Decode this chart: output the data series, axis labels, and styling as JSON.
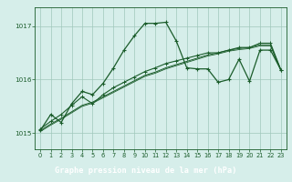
{
  "xlabel": "Graphe pression niveau de la mer (hPa)",
  "xlim_min": -0.5,
  "xlim_max": 23.5,
  "ylim_min": 1014.7,
  "ylim_max": 1017.35,
  "yticks": [
    1015,
    1016,
    1017
  ],
  "xticks": [
    0,
    1,
    2,
    3,
    4,
    5,
    6,
    7,
    8,
    9,
    10,
    11,
    12,
    13,
    14,
    15,
    16,
    17,
    18,
    19,
    20,
    21,
    22,
    23
  ],
  "plot_bg": "#d6eeea",
  "label_bg": "#3a7a5a",
  "grid_color": "#a0c8bc",
  "line_color": "#1a5c2a",
  "series_dotted": [
    1015.05,
    1015.35,
    1015.2,
    1015.55,
    1015.78,
    1015.72,
    1015.93,
    1016.22,
    1016.55,
    1016.82,
    1017.05,
    1017.05,
    1017.07,
    1016.72,
    1016.22,
    1016.2,
    1016.2,
    1015.95,
    1016.0,
    1016.38,
    1015.97,
    1016.55,
    1016.55,
    1016.18
  ],
  "series_marked1": [
    1015.08,
    1015.22,
    1015.35,
    1015.52,
    1015.68,
    1015.55,
    1015.72,
    1015.85,
    1015.95,
    1016.05,
    1016.15,
    1016.22,
    1016.3,
    1016.35,
    1016.4,
    1016.45,
    1016.5,
    1016.5,
    1016.55,
    1016.6,
    1016.6,
    1016.68,
    1016.68,
    1016.18
  ],
  "series_plain1": [
    1015.05,
    1015.17,
    1015.28,
    1015.4,
    1015.52,
    1015.58,
    1015.68,
    1015.78,
    1015.88,
    1015.98,
    1016.08,
    1016.14,
    1016.22,
    1016.28,
    1016.34,
    1016.4,
    1016.46,
    1016.5,
    1016.55,
    1016.58,
    1016.6,
    1016.65,
    1016.65,
    1016.18
  ],
  "series_plain2": [
    1015.03,
    1015.15,
    1015.26,
    1015.38,
    1015.5,
    1015.56,
    1015.66,
    1015.76,
    1015.86,
    1015.96,
    1016.06,
    1016.12,
    1016.2,
    1016.26,
    1016.32,
    1016.38,
    1016.44,
    1016.48,
    1016.53,
    1016.56,
    1016.58,
    1016.63,
    1016.63,
    1016.16
  ]
}
